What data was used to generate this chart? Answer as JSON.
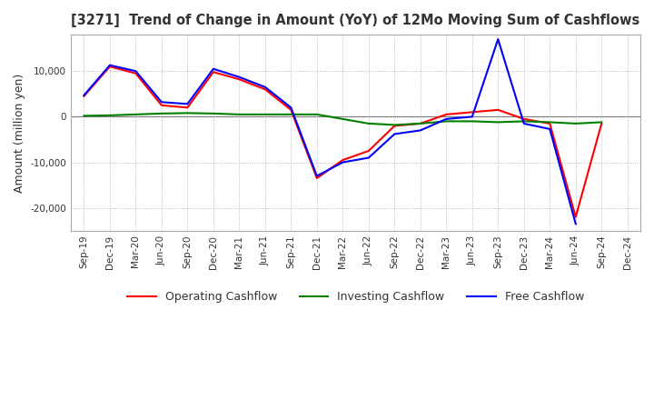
{
  "title": "[3271]  Trend of Change in Amount (YoY) of 12Mo Moving Sum of Cashflows",
  "ylabel": "Amount (million yen)",
  "x_labels": [
    "Sep-19",
    "Dec-19",
    "Mar-20",
    "Jun-20",
    "Sep-20",
    "Dec-20",
    "Mar-21",
    "Jun-21",
    "Sep-21",
    "Dec-21",
    "Mar-22",
    "Jun-22",
    "Sep-22",
    "Dec-22",
    "Mar-23",
    "Jun-23",
    "Sep-23",
    "Dec-23",
    "Mar-24",
    "Jun-24",
    "Sep-24",
    "Dec-24"
  ],
  "operating": [
    4500,
    11000,
    9500,
    2500,
    2000,
    9800,
    8200,
    6000,
    1500,
    -13500,
    -9500,
    -7500,
    -2000,
    -1500,
    500,
    1000,
    1500,
    -500,
    -1500,
    -22000,
    -1500,
    null
  ],
  "investing": [
    200,
    300,
    500,
    700,
    800,
    700,
    500,
    500,
    500,
    500,
    -500,
    -1500,
    -1800,
    -1500,
    -1000,
    -1000,
    -1200,
    -1000,
    -1200,
    -1500,
    -1200,
    null
  ],
  "free": [
    4700,
    11300,
    10000,
    3200,
    2800,
    10500,
    8700,
    6500,
    2000,
    -13000,
    -10000,
    -9000,
    -3800,
    -3000,
    -500,
    0,
    17000,
    -1500,
    -2700,
    -23500,
    null,
    null
  ],
  "ylim": [
    -25000,
    18000
  ],
  "yticks": [
    -20000,
    -10000,
    0,
    10000
  ],
  "colors": {
    "operating": "#ff0000",
    "investing": "#008000",
    "free": "#0000ff"
  },
  "legend": [
    "Operating Cashflow",
    "Investing Cashflow",
    "Free Cashflow"
  ],
  "background": "#ffffff",
  "grid_color": "#aaaaaa",
  "title_color": "#333333"
}
